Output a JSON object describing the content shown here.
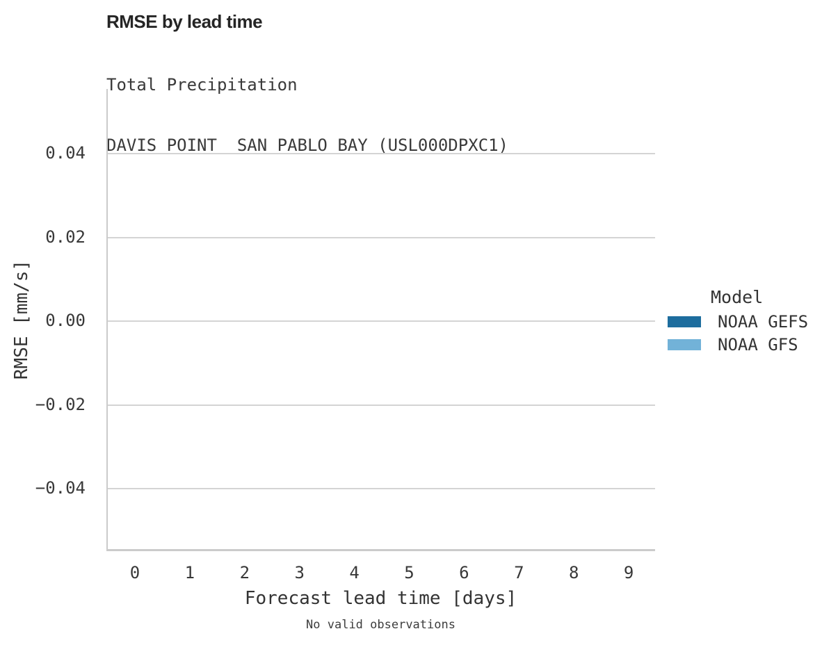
{
  "header": {
    "title": "RMSE by lead time",
    "subtitle_line1": "Total Precipitation",
    "subtitle_line2": "DAVIS POINT  SAN PABLO BAY (USL000DPXC1)"
  },
  "chart_data": {
    "type": "line",
    "title": "RMSE by lead time",
    "subtitle": [
      "Total Precipitation",
      "DAVIS POINT  SAN PABLO BAY (USL000DPXC1)"
    ],
    "xlabel": "Forecast lead time [days]",
    "ylabel": "RMSE [mm/s]",
    "xticks": [
      "0",
      "1",
      "2",
      "3",
      "4",
      "5",
      "6",
      "7",
      "8",
      "9"
    ],
    "yticks": [
      "0.04",
      "0.02",
      "0.00",
      "−0.02",
      "−0.04"
    ],
    "ytick_values": [
      0.04,
      0.02,
      0.0,
      -0.02,
      -0.04
    ],
    "xlim": [
      -0.5,
      9.5
    ],
    "ylim": [
      -0.055,
      0.055
    ],
    "grid": true,
    "legend_position": "right",
    "legend_title": "Model",
    "series": [
      {
        "name": "NOAA GEFS",
        "color": "#1d6d9e",
        "x": [],
        "values": []
      },
      {
        "name": "NOAA GFS",
        "color": "#72b2d8",
        "x": [],
        "values": []
      }
    ],
    "annotation": "No valid observations"
  },
  "legend": {
    "title": "Model",
    "items": [
      {
        "label": "NOAA GEFS",
        "color": "#1d6d9e"
      },
      {
        "label": "NOAA GFS",
        "color": "#72b2d8"
      }
    ]
  },
  "axes": {
    "x_title": "Forecast lead time [days]",
    "y_title": "RMSE [mm/s]"
  },
  "caption": "No valid observations",
  "colors": {
    "gridline": "#d4d4d4",
    "axis_line": "#cbcbcb",
    "text": "#333333"
  }
}
